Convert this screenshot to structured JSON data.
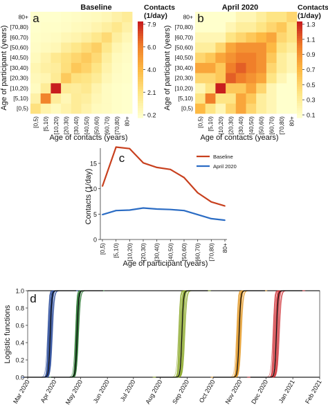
{
  "panels": {
    "a": {
      "letter": "a",
      "title": "Baseline"
    },
    "b": {
      "letter": "b",
      "title": "April 2020"
    },
    "c": {
      "letter": "c"
    },
    "d": {
      "letter": "d"
    }
  },
  "colors": {
    "heat_low": "#ffffcc",
    "heat_mid1": "#fee585",
    "heat_mid2": "#fdb943",
    "heat_mid3": "#f07f2a",
    "heat_high": "#c81e1e",
    "baseline_line": "#c8401e",
    "april_line": "#2b6cc4",
    "logistic_groups": [
      "#2a4a9a",
      "#2e7a36",
      "#8aa828",
      "#e39a2a",
      "#d0343a"
    ]
  },
  "chart_data": [
    {
      "id": "a",
      "type": "heatmap",
      "title": "Baseline",
      "xlabel": "Age of contacts (years)",
      "ylabel": "Age of participant (years)",
      "categories": [
        "[0,5)",
        "[5,10)",
        "[10,20)",
        "[20,30)",
        "[30,40)",
        "[40,50)",
        "[50,60)",
        "[60,70)",
        "[70,80)",
        "80+"
      ],
      "colorbar": {
        "title": "Contacts (1/day)",
        "ticks": [
          "7.9",
          "6.0",
          "4.0",
          "2.1",
          "0.2"
        ],
        "range": [
          0.2,
          7.9
        ]
      },
      "matrix": [
        [
          2.3,
          1.1,
          0.6,
          1.1,
          1.6,
          1.1,
          0.6,
          0.5,
          0.3,
          0.2
        ],
        [
          1.2,
          5.8,
          1.5,
          0.8,
          1.6,
          1.4,
          0.8,
          0.5,
          0.3,
          0.2
        ],
        [
          0.5,
          1.6,
          7.9,
          1.6,
          1.5,
          1.8,
          1.0,
          0.5,
          0.3,
          0.2
        ],
        [
          0.7,
          0.9,
          1.7,
          3.3,
          2.3,
          2.1,
          1.6,
          0.8,
          0.4,
          0.3
        ],
        [
          0.9,
          1.3,
          1.5,
          2.4,
          3.4,
          2.9,
          2.1,
          1.1,
          0.5,
          0.3
        ],
        [
          0.6,
          1.1,
          1.8,
          2.3,
          2.8,
          3.3,
          2.6,
          1.4,
          0.6,
          0.4
        ],
        [
          0.4,
          0.6,
          0.8,
          1.5,
          2.0,
          2.5,
          3.1,
          1.9,
          0.9,
          0.5
        ],
        [
          0.3,
          0.4,
          0.5,
          0.8,
          1.0,
          1.4,
          1.9,
          2.6,
          1.4,
          0.8
        ],
        [
          0.2,
          0.3,
          0.3,
          0.4,
          0.6,
          0.7,
          1.0,
          1.4,
          1.9,
          1.2
        ],
        [
          0.2,
          0.2,
          0.2,
          0.3,
          0.4,
          0.5,
          0.6,
          0.8,
          1.2,
          1.6
        ]
      ]
    },
    {
      "id": "b",
      "type": "heatmap",
      "title": "April 2020",
      "xlabel": "Age of contacts (years)",
      "ylabel": "Age of participant (years)",
      "categories": [
        "[0,5)",
        "[5,10)",
        "[10,20)",
        "[20,30)",
        "[30,40)",
        "[40,50)",
        "[50,60)",
        "[60,70)",
        "[70,80)",
        "80+"
      ],
      "colorbar": {
        "title": "Contacts (1/day)",
        "ticks": [
          "1.3",
          "1.1",
          "0.9",
          "0.7",
          "0.5",
          "0.3",
          "0.1"
        ],
        "range": [
          0.1,
          1.3
        ]
      },
      "matrix": [
        [
          0.7,
          0.4,
          0.2,
          0.5,
          0.8,
          0.5,
          0.3,
          0.2,
          0.1,
          0.1
        ],
        [
          0.4,
          1.0,
          0.4,
          0.4,
          0.8,
          0.6,
          0.3,
          0.2,
          0.1,
          0.1
        ],
        [
          0.2,
          0.4,
          1.3,
          0.6,
          0.6,
          0.8,
          0.5,
          0.2,
          0.1,
          0.1
        ],
        [
          0.5,
          0.5,
          0.6,
          1.1,
          1.0,
          0.9,
          0.8,
          0.4,
          0.2,
          0.1
        ],
        [
          0.8,
          0.8,
          0.6,
          1.0,
          1.1,
          1.0,
          0.9,
          0.5,
          0.3,
          0.2
        ],
        [
          0.5,
          0.6,
          0.8,
          0.9,
          1.0,
          1.0,
          0.9,
          0.6,
          0.3,
          0.2
        ],
        [
          0.3,
          0.3,
          0.5,
          0.8,
          0.9,
          0.9,
          0.9,
          0.7,
          0.4,
          0.3
        ],
        [
          0.2,
          0.2,
          0.2,
          0.4,
          0.5,
          0.6,
          0.7,
          0.8,
          0.5,
          0.4
        ],
        [
          0.1,
          0.1,
          0.1,
          0.2,
          0.3,
          0.3,
          0.4,
          0.5,
          0.6,
          0.4
        ],
        [
          0.1,
          0.1,
          0.1,
          0.1,
          0.2,
          0.2,
          0.3,
          0.4,
          0.4,
          0.5
        ]
      ]
    },
    {
      "id": "c",
      "type": "line",
      "xlabel": "Age of participant (years)",
      "ylabel": "Contacts (1/day)",
      "categories": [
        "[0,5)",
        "[5,10)",
        "[10,20)",
        "[20,30)",
        "[30,40)",
        "[40,50)",
        "[50,60)",
        "[60,70)",
        "[70,80)",
        "80+"
      ],
      "ylim": [
        0,
        18
      ],
      "yticks": [
        0,
        5,
        10,
        15
      ],
      "legend": "top-right",
      "series": [
        {
          "name": "Baseline",
          "values": [
            10.5,
            18.2,
            17.9,
            15.1,
            14.2,
            13.8,
            12.2,
            9.2,
            7.4,
            6.6
          ]
        },
        {
          "name": "April 2020",
          "values": [
            4.9,
            5.7,
            5.8,
            6.2,
            6.0,
            5.9,
            5.7,
            4.9,
            4.1,
            3.8
          ]
        }
      ]
    },
    {
      "id": "d",
      "type": "line",
      "ylabel": "Logistic functions",
      "x_ticks": [
        "Mar 2020",
        "Apr 2020",
        "May 2020",
        "Jun 2020",
        "Jul 2020",
        "Aug 2020",
        "Sep 2020",
        "Oct 2020",
        "Nov 2020",
        "Dec 2020",
        "Jan 2021",
        "Feb 2021"
      ],
      "ylim": [
        0,
        1
      ],
      "yticks": [
        "0.0",
        "0.2",
        "0.4",
        "0.6",
        "0.8",
        "1.0"
      ],
      "logistic_groups": [
        {
          "midpoint": "2020-03-27",
          "spread_days": 3
        },
        {
          "midpoint": "2020-04-27",
          "spread_days": 2
        },
        {
          "midpoint": "2020-08-26",
          "spread_days": 4
        },
        {
          "midpoint": "2020-10-31",
          "spread_days": 3
        },
        {
          "midpoint": "2020-12-13",
          "spread_days": 4
        }
      ]
    }
  ]
}
